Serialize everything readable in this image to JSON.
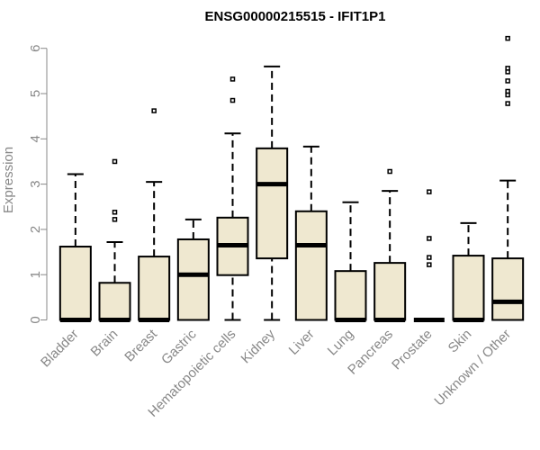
{
  "chart_data": {
    "type": "boxplot",
    "title": "ENSG00000215515 - IFIT1P1",
    "ylabel": "Expression",
    "xlabel": "",
    "ylim": [
      0,
      6.3
    ],
    "yticks": [
      0,
      1,
      2,
      3,
      4,
      5,
      6
    ],
    "colors": {
      "box_fill": "#EFE8D0",
      "stroke": "#000000",
      "axis": "#888888"
    },
    "categories": [
      "Bladder",
      "Brain",
      "Breast",
      "Gastric",
      "Hematopoietic cells",
      "Kidney",
      "Liver",
      "Lung",
      "Pancreas",
      "Prostate",
      "Skin",
      "Unknown / Other"
    ],
    "boxes": [
      {
        "category": "Bladder",
        "whisker_low": 0,
        "q1": 0,
        "median": 0,
        "q3": 1.62,
        "whisker_high": 3.22,
        "outliers": []
      },
      {
        "category": "Brain",
        "whisker_low": 0,
        "q1": 0,
        "median": 0,
        "q3": 0.82,
        "whisker_high": 1.72,
        "outliers": [
          2.22,
          2.38,
          3.5
        ]
      },
      {
        "category": "Breast",
        "whisker_low": 0,
        "q1": 0,
        "median": 0,
        "q3": 1.4,
        "whisker_high": 3.05,
        "outliers": [
          4.62
        ]
      },
      {
        "category": "Gastric",
        "whisker_low": 0,
        "q1": 0,
        "median": 1.0,
        "q3": 1.78,
        "whisker_high": 2.22,
        "outliers": []
      },
      {
        "category": "Hematopoietic cells",
        "whisker_low": 0,
        "q1": 0.99,
        "median": 1.65,
        "q3": 2.26,
        "whisker_high": 4.12,
        "outliers": [
          4.85,
          5.32
        ]
      },
      {
        "category": "Kidney",
        "whisker_low": 0,
        "q1": 1.36,
        "median": 3.0,
        "q3": 3.79,
        "whisker_high": 5.6,
        "outliers": []
      },
      {
        "category": "Liver",
        "whisker_low": 0,
        "q1": 0,
        "median": 1.65,
        "q3": 2.4,
        "whisker_high": 3.83,
        "outliers": []
      },
      {
        "category": "Lung",
        "whisker_low": 0,
        "q1": 0,
        "median": 0,
        "q3": 1.08,
        "whisker_high": 2.6,
        "outliers": []
      },
      {
        "category": "Pancreas",
        "whisker_low": 0,
        "q1": 0,
        "median": 0,
        "q3": 1.26,
        "whisker_high": 2.85,
        "outliers": [
          3.28
        ]
      },
      {
        "category": "Prostate",
        "whisker_low": 0,
        "q1": 0,
        "median": 0,
        "q3": 0,
        "whisker_high": 0,
        "outliers": [
          1.22,
          1.38,
          1.8,
          2.83
        ]
      },
      {
        "category": "Skin",
        "whisker_low": 0,
        "q1": 0,
        "median": 0,
        "q3": 1.42,
        "whisker_high": 2.14,
        "outliers": []
      },
      {
        "category": "Unknown / Other",
        "whisker_low": 0,
        "q1": 0,
        "median": 0.4,
        "q3": 1.36,
        "whisker_high": 3.08,
        "outliers": [
          4.78,
          4.97,
          5.05,
          5.28,
          5.48,
          5.56,
          6.22
        ]
      }
    ]
  }
}
